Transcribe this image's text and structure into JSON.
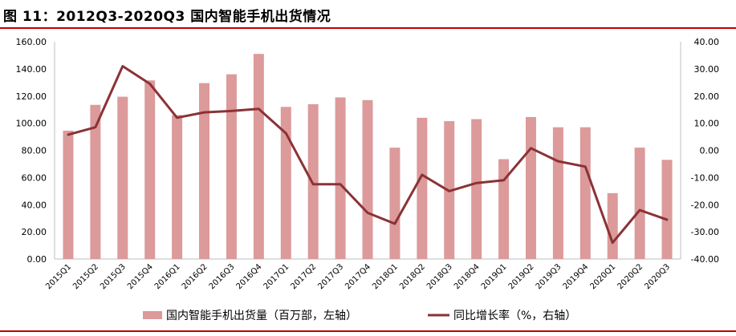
{
  "figure": {
    "title": "图 11：2012Q3-2020Q3 国内智能手机出货情况",
    "colors": {
      "rule": "#c00000",
      "bar": "#dc9a9a",
      "line": "#8b3236"
    }
  },
  "chart_data": {
    "type": "bar",
    "title": "",
    "categories": [
      "2015Q1",
      "2015Q2",
      "2015Q3",
      "2015Q4",
      "2016Q1",
      "2016Q2",
      "2016Q3",
      "2016Q4",
      "2017Q1",
      "2017Q2",
      "2017Q3",
      "2017Q4",
      "2018Q1",
      "2018Q2",
      "2018Q3",
      "2018Q4",
      "2019Q1",
      "2019Q2",
      "2019Q3",
      "2019Q4",
      "2020Q1",
      "2020Q2",
      "2020Q3"
    ],
    "series": [
      {
        "name": "国内智能手机出货量（百万部，左轴）",
        "type": "bar",
        "axis": "left",
        "values": [
          94.5,
          113.5,
          119.5,
          131.5,
          106,
          129.5,
          136,
          151,
          112,
          114,
          119,
          117,
          82,
          104,
          101.5,
          103,
          73.5,
          104.5,
          97,
          97,
          48.5,
          82,
          73
        ]
      },
      {
        "name": "同比增长率（%，右轴）",
        "type": "line",
        "axis": "right",
        "values": [
          5.8,
          8.5,
          31,
          24.5,
          12,
          14,
          14.5,
          15.3,
          6.3,
          -12.5,
          -12.5,
          -23,
          -27,
          -9,
          -15,
          -12,
          -11,
          0.8,
          -4,
          -6,
          -34,
          -22,
          -25.5
        ]
      }
    ],
    "y_left": {
      "min": 0,
      "max": 160,
      "step": 20,
      "decimals": 2
    },
    "y_right": {
      "min": -40,
      "max": 40,
      "step": 10,
      "decimals": 2
    },
    "legend": "bottom",
    "grid": false
  }
}
